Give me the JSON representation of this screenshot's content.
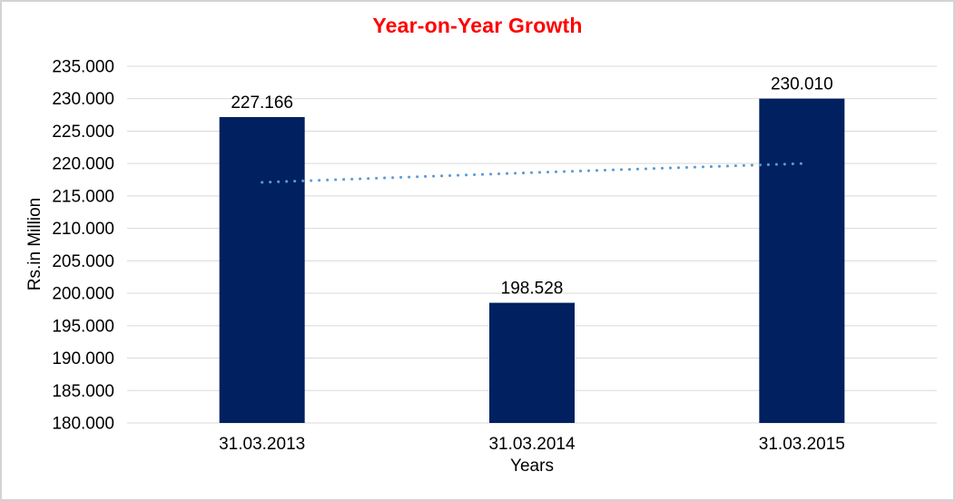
{
  "chart_data": {
    "type": "bar",
    "title": "Year-on-Year Growth",
    "title_color": "#FF0000",
    "xlabel": "Years",
    "ylabel": "Rs.in Million",
    "categories": [
      "31.03.2013",
      "31.03.2014",
      "31.03.2015"
    ],
    "values": [
      227.166,
      198.528,
      230.01
    ],
    "data_labels": [
      "227.166",
      "198.528",
      "230.010"
    ],
    "bar_color": "#002060",
    "ylim": [
      180,
      235
    ],
    "ytick_step": 5,
    "ytick_labels": [
      "235.000",
      "230.000",
      "225.000",
      "220.000",
      "215.000",
      "210.000",
      "205.000",
      "200.000",
      "195.000",
      "190.000",
      "185.000",
      "180.000"
    ],
    "grid": true,
    "grid_color": "#d9d9d9",
    "legend": "none",
    "trendline": {
      "type": "linear",
      "style": "dotted",
      "color": "#5B9BD5",
      "values": [
        217.1,
        218.6,
        220.0
      ]
    }
  }
}
